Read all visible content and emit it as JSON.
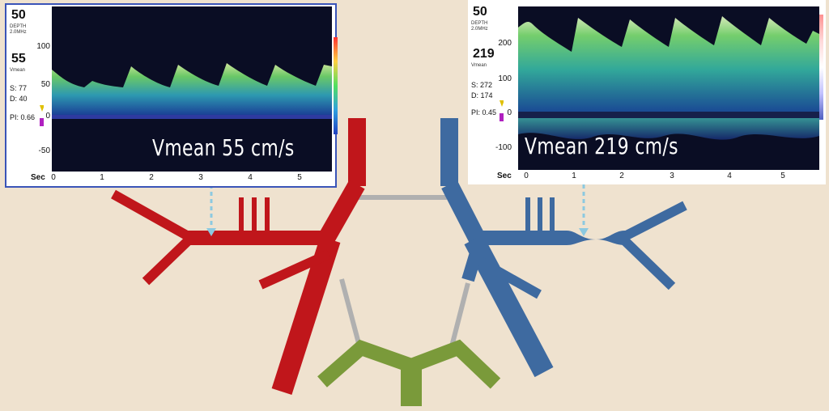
{
  "left_panel": {
    "depth_value": "50",
    "depth_label": "DEPTH",
    "freq_label": "2.0MHz",
    "vmean_value": "55",
    "vmean_label": "Vmean",
    "systolic": "S: 77",
    "diastolic": "D: 40",
    "pi": "PI: 0.66",
    "y_ticks": [
      "100",
      "50",
      "0",
      "-50"
    ],
    "x_unit": "Sec",
    "x_ticks": [
      "0",
      "1",
      "2",
      "3",
      "4",
      "5"
    ],
    "overlay_label": "Vmean 55 cm/s"
  },
  "right_panel": {
    "depth_value": "50",
    "depth_label": "DEPTH",
    "freq_label": "2.0MHz",
    "vmean_value": "219",
    "vmean_label": "Vmean",
    "systolic": "S: 272",
    "diastolic": "D: 174",
    "pi": "PI: 0.45",
    "y_ticks": [
      "200",
      "100",
      "0",
      "-100"
    ],
    "x_unit": "Sec",
    "x_ticks": [
      "0",
      "1",
      "2",
      "3",
      "4",
      "5"
    ],
    "overlay_label": "Vmean 219 cm/s"
  },
  "colors": {
    "background": "#efe2cf",
    "left_vessels": "#c0161b",
    "right_vessels": "#3e6aa0",
    "basilar": "#7a9a3a",
    "communicating": "#b0b0b0",
    "probe_marker": "#8cc9e0",
    "spectrogram_bg": "#0a0d24",
    "panel_border": "#3a54b8"
  }
}
